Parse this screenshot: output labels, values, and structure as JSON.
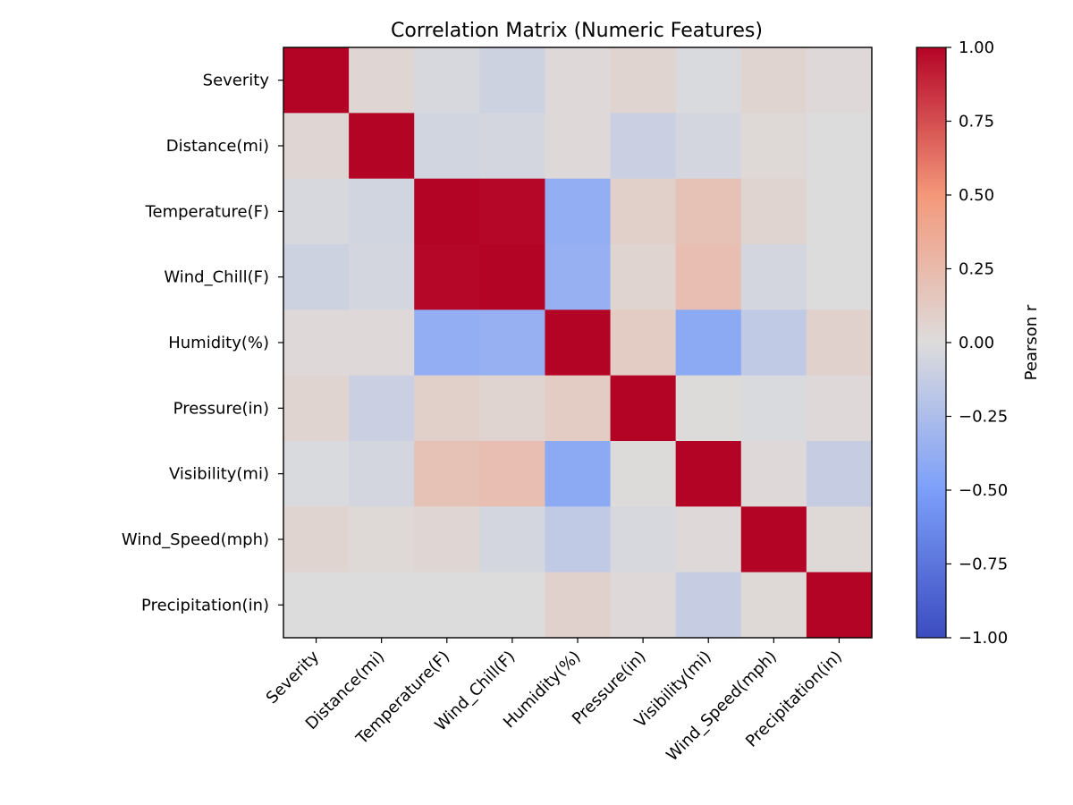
{
  "chart_data": {
    "type": "heatmap",
    "title": "Correlation Matrix (Numeric Features)",
    "labels": [
      "Severity",
      "Distance(mi)",
      "Temperature(F)",
      "Wind_Chill(F)",
      "Humidity(%)",
      "Pressure(in)",
      "Visibility(mi)",
      "Wind_Speed(mph)",
      "Precipitation(in)"
    ],
    "values": [
      [
        1.0,
        0.05,
        -0.03,
        -0.08,
        0.02,
        0.06,
        -0.02,
        0.06,
        0.02
      ],
      [
        0.05,
        1.0,
        -0.06,
        -0.05,
        0.02,
        -0.1,
        -0.05,
        0.03,
        0.0
      ],
      [
        -0.03,
        -0.06,
        1.0,
        0.99,
        -0.38,
        0.09,
        0.2,
        0.06,
        0.0
      ],
      [
        -0.08,
        -0.05,
        0.99,
        1.0,
        -0.36,
        0.06,
        0.22,
        -0.05,
        0.0
      ],
      [
        0.02,
        0.02,
        -0.38,
        -0.36,
        1.0,
        0.12,
        -0.42,
        -0.15,
        0.08
      ],
      [
        0.06,
        -0.1,
        0.09,
        0.06,
        0.12,
        1.0,
        0.01,
        -0.02,
        0.02
      ],
      [
        -0.02,
        -0.05,
        0.2,
        0.22,
        -0.42,
        0.01,
        1.0,
        0.02,
        -0.12
      ],
      [
        0.06,
        0.03,
        0.05,
        -0.05,
        -0.15,
        -0.03,
        0.02,
        1.0,
        0.03
      ],
      [
        0.0,
        0.0,
        0.0,
        0.0,
        0.08,
        0.02,
        -0.12,
        0.03,
        1.0
      ]
    ],
    "colormap": "coolwarm",
    "vmin": -1.0,
    "vmax": 1.0,
    "colorbar": {
      "label": "Pearson r",
      "ticks": [
        1.0,
        0.75,
        0.5,
        0.25,
        0.0,
        -0.25,
        -0.5,
        -0.75,
        -1.0
      ],
      "tick_labels": [
        "1.00",
        "0.75",
        "0.50",
        "0.25",
        "0.00",
        "−0.25",
        "−0.50",
        "−0.75",
        "−1.00"
      ]
    },
    "grid": false
  }
}
